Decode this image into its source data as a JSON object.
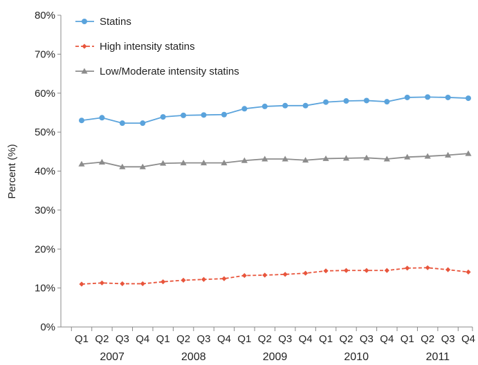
{
  "chart_data": {
    "type": "line",
    "title": "",
    "ylabel": "Percent (%)",
    "xlabel": "",
    "ylim": [
      0,
      80
    ],
    "y_ticks": [
      "0%",
      "10%",
      "20%",
      "30%",
      "40%",
      "50%",
      "60%",
      "70%",
      "80%"
    ],
    "categories": [
      "Q1",
      "Q2",
      "Q3",
      "Q4",
      "Q1",
      "Q2",
      "Q3",
      "Q4",
      "Q1",
      "Q2",
      "Q3",
      "Q4",
      "Q1",
      "Q2",
      "Q3",
      "Q4",
      "Q1",
      "Q2",
      "Q3",
      "Q4"
    ],
    "years": [
      "2007",
      "2008",
      "2009",
      "2010",
      "2011"
    ],
    "legend_position": "top-left",
    "grid": false,
    "series": [
      {
        "name": "Statins",
        "color": "#5aa3dc",
        "marker": "circle",
        "values": [
          53.0,
          53.7,
          52.3,
          52.3,
          53.9,
          54.3,
          54.4,
          54.5,
          56.0,
          56.6,
          56.8,
          56.8,
          57.7,
          58.0,
          58.1,
          57.8,
          58.9,
          59.0,
          58.9,
          58.7
        ]
      },
      {
        "name": "High intensity statins",
        "color": "#e8553c",
        "marker": "diamond",
        "values": [
          11.0,
          11.3,
          11.1,
          11.1,
          11.6,
          12.0,
          12.2,
          12.4,
          13.2,
          13.3,
          13.5,
          13.8,
          14.4,
          14.5,
          14.5,
          14.5,
          15.1,
          15.2,
          14.7,
          14.1
        ]
      },
      {
        "name": "Low/Moderate intensity statins",
        "color": "#8c8c8c",
        "marker": "triangle",
        "values": [
          41.8,
          42.3,
          41.1,
          41.1,
          42.0,
          42.1,
          42.1,
          42.1,
          42.7,
          43.1,
          43.1,
          42.8,
          43.2,
          43.3,
          43.4,
          43.1,
          43.6,
          43.8,
          44.1,
          44.5
        ]
      }
    ]
  }
}
